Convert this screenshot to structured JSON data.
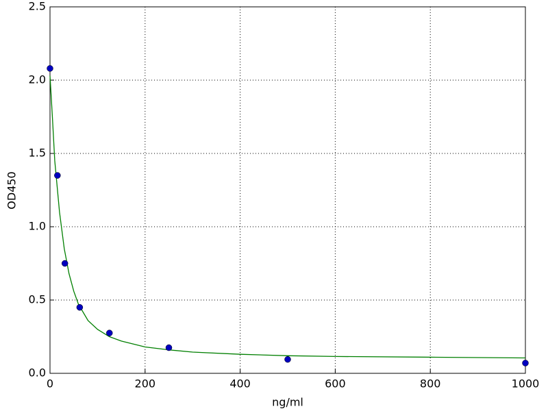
{
  "chart_data": {
    "type": "scatter",
    "x_label": "ng/ml",
    "y_label": "OD450",
    "xlim": [
      0,
      1000
    ],
    "ylim": [
      0,
      2.5
    ],
    "xticks": [
      0,
      200,
      400,
      600,
      800,
      1000
    ],
    "yticks": [
      {
        "value": 0,
        "label": "0.0"
      },
      0.5,
      {
        "value": 1,
        "label": "1.0"
      },
      1.5,
      {
        "value": 2,
        "label": "2.0"
      },
      2.5
    ],
    "grid": true,
    "series": [
      {
        "style": "markers",
        "color": "#0000bf",
        "x": [
          0,
          15.6,
          31.25,
          62.5,
          125,
          250,
          500,
          1000
        ],
        "values": [
          2.08,
          1.35,
          0.75,
          0.45,
          0.275,
          0.175,
          0.095,
          0.07
        ]
      },
      {
        "style": "line",
        "color": "#007f00",
        "x": [
          0,
          5,
          10,
          20,
          30,
          40,
          50,
          60,
          80,
          100,
          125,
          150,
          200,
          250,
          300,
          400,
          500,
          600,
          800,
          1000
        ],
        "values": [
          2.03,
          1.75,
          1.45,
          1.1,
          0.85,
          0.68,
          0.56,
          0.47,
          0.36,
          0.3,
          0.25,
          0.22,
          0.18,
          0.16,
          0.145,
          0.13,
          0.12,
          0.115,
          0.11,
          0.105
        ]
      }
    ]
  }
}
